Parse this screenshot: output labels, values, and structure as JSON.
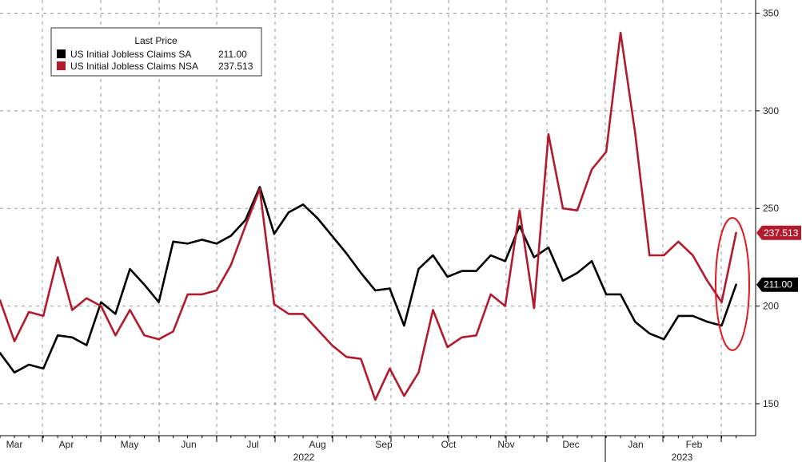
{
  "chart_data": {
    "type": "line",
    "legend": {
      "title": "Last Price",
      "placement": "top-left"
    },
    "series": [
      {
        "name": "US Initial Jobless Claims SA",
        "last_value_label": "211.00",
        "tag_label": "211.00",
        "color": "#000000",
        "values": [
          176,
          166,
          170,
          168,
          185,
          184,
          180,
          202,
          196,
          219,
          211,
          202,
          233,
          232,
          234,
          232,
          236,
          244,
          261,
          237,
          248,
          252,
          245,
          236,
          227,
          217,
          208,
          209,
          190,
          219,
          226,
          215,
          218,
          218,
          226,
          223,
          241,
          225,
          230,
          213,
          217,
          223,
          206,
          206,
          192,
          186,
          183,
          195,
          195,
          192,
          190,
          211
        ]
      },
      {
        "name": "US Initial Jobless Claims NSA",
        "last_value_label": "237.513",
        "tag_label": "237.513",
        "color": "#b01c2e",
        "values": [
          203,
          182,
          197,
          195,
          225,
          198,
          204,
          200,
          185,
          198,
          185,
          183,
          187,
          206,
          206,
          208,
          221,
          241,
          260,
          201,
          196,
          196,
          188,
          180,
          174,
          173,
          152,
          168,
          154,
          166,
          198,
          179,
          184,
          185,
          206,
          200,
          249,
          199,
          288,
          250,
          249,
          270,
          279,
          340,
          289,
          226,
          226,
          233,
          226,
          213,
          202,
          237.513
        ]
      }
    ],
    "y_axis": {
      "ylim": [
        137,
        355
      ],
      "ticks": [
        150,
        200,
        250,
        300,
        350
      ],
      "tick_labels": [
        "150",
        "200",
        "250",
        "300",
        "350"
      ],
      "position": "right"
    },
    "x_axis": {
      "month_labels": [
        "Mar",
        "Apr",
        "May",
        "Jun",
        "Jul",
        "Aug",
        "Sep",
        "Oct",
        "Nov",
        "Dec",
        "Jan",
        "Feb"
      ],
      "year_labels": [
        "2022",
        "2023"
      ]
    },
    "grid": true,
    "annotation": "red ellipse around latest readings"
  }
}
